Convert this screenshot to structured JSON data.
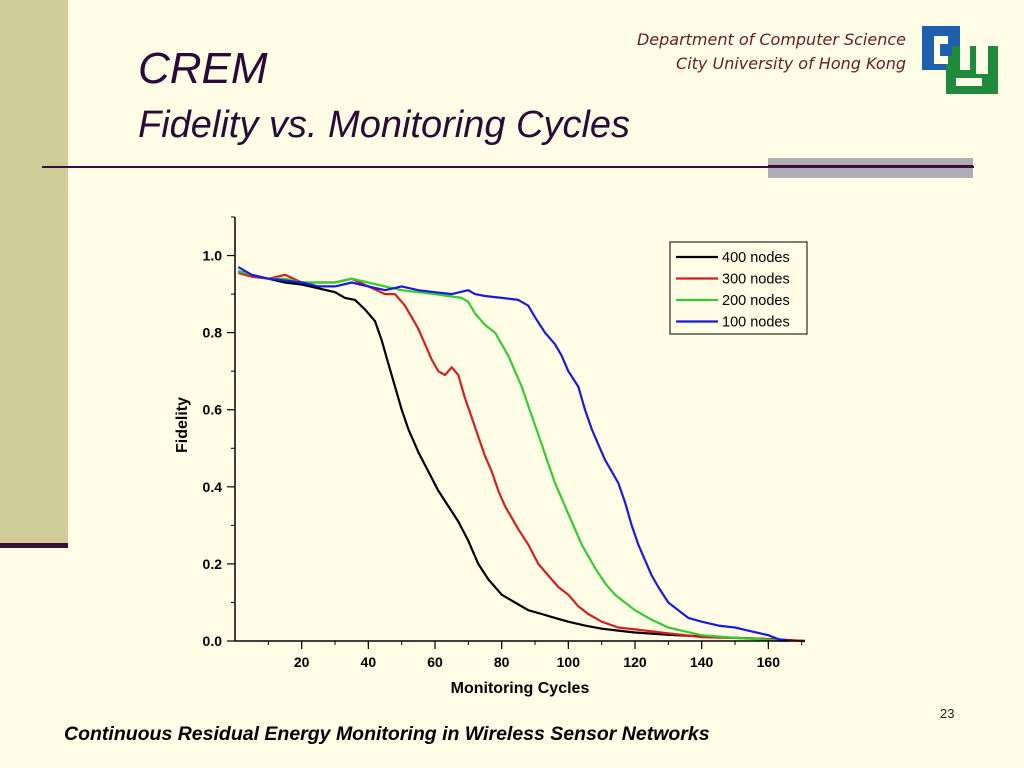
{
  "slide": {
    "title": "CREM",
    "subtitle": "Fidelity vs. Monitoring Cycles",
    "dept_line1": "Department of Computer Science",
    "dept_line2": "City University of Hong Kong",
    "page_number": "23",
    "footer": "Continuous Residual Energy Monitoring in Wireless Sensor Networks"
  },
  "colors": {
    "logo_blue": "#1f5fae",
    "logo_green": "#1f8a3c",
    "title": "#2a0a36",
    "dept": "#6b1a24"
  },
  "chart_data": {
    "type": "line",
    "title": "",
    "xlabel": "Monitoring Cycles",
    "ylabel": "Fidelity",
    "xlim": [
      0,
      171
    ],
    "ylim": [
      0,
      1.1
    ],
    "xticks": [
      20,
      40,
      60,
      80,
      100,
      120,
      140,
      160
    ],
    "xtick_labels": [
      "20",
      "40",
      "60",
      "80",
      "100",
      "120",
      "140",
      "160"
    ],
    "yticks": [
      0.0,
      0.2,
      0.4,
      0.6,
      0.8,
      1.0
    ],
    "ytick_labels": [
      "0.0",
      "0.2",
      "0.4",
      "0.6",
      "0.8",
      "1.0"
    ],
    "grid": false,
    "legend_position": "top-right",
    "series": [
      {
        "name": "400 nodes",
        "color": "#000000",
        "x": [
          1,
          5,
          10,
          15,
          20,
          25,
          30,
          33,
          36,
          39,
          42,
          44,
          46,
          48,
          50,
          52,
          55,
          58,
          61,
          64,
          67,
          70,
          73,
          76,
          80,
          84,
          88,
          92,
          96,
          100,
          105,
          110,
          115,
          120,
          130,
          140,
          150,
          160,
          165,
          171
        ],
        "y": [
          0.96,
          0.95,
          0.94,
          0.93,
          0.925,
          0.915,
          0.905,
          0.89,
          0.885,
          0.86,
          0.83,
          0.78,
          0.72,
          0.66,
          0.6,
          0.55,
          0.49,
          0.44,
          0.39,
          0.35,
          0.31,
          0.26,
          0.2,
          0.16,
          0.12,
          0.1,
          0.08,
          0.07,
          0.06,
          0.05,
          0.04,
          0.032,
          0.027,
          0.022,
          0.016,
          0.012,
          0.008,
          0.005,
          0.003,
          0.0
        ]
      },
      {
        "name": "300 nodes",
        "color": "#d42020",
        "x": [
          1,
          5,
          10,
          15,
          20,
          25,
          30,
          35,
          40,
          45,
          48,
          51,
          53,
          55,
          57,
          59,
          61,
          63,
          65,
          67,
          69,
          71,
          73,
          75,
          77,
          79,
          81,
          83,
          85,
          88,
          91,
          94,
          97,
          100,
          103,
          106,
          110,
          115,
          120,
          130,
          140,
          150,
          160,
          165,
          171
        ],
        "y": [
          0.955,
          0.945,
          0.94,
          0.95,
          0.93,
          0.93,
          0.93,
          0.94,
          0.92,
          0.9,
          0.9,
          0.87,
          0.84,
          0.81,
          0.77,
          0.73,
          0.7,
          0.69,
          0.71,
          0.69,
          0.63,
          0.58,
          0.53,
          0.48,
          0.44,
          0.39,
          0.35,
          0.32,
          0.29,
          0.25,
          0.2,
          0.17,
          0.14,
          0.12,
          0.09,
          0.07,
          0.05,
          0.035,
          0.03,
          0.02,
          0.01,
          0.008,
          0.005,
          0.002,
          0.0
        ]
      },
      {
        "name": "200 nodes",
        "color": "#33cc33",
        "x": [
          1,
          5,
          10,
          15,
          20,
          25,
          30,
          35,
          40,
          45,
          50,
          55,
          60,
          64,
          68,
          70,
          72,
          75,
          78,
          80,
          82,
          84,
          86,
          88,
          90,
          92,
          94,
          96,
          98,
          100,
          102,
          104,
          106,
          108,
          111,
          114,
          117,
          120,
          125,
          130,
          135,
          140,
          150,
          160,
          165
        ],
        "y": [
          0.96,
          0.95,
          0.94,
          0.94,
          0.93,
          0.93,
          0.93,
          0.94,
          0.93,
          0.92,
          0.91,
          0.905,
          0.9,
          0.895,
          0.89,
          0.88,
          0.85,
          0.82,
          0.8,
          0.77,
          0.74,
          0.7,
          0.66,
          0.61,
          0.56,
          0.51,
          0.46,
          0.41,
          0.37,
          0.33,
          0.29,
          0.25,
          0.22,
          0.19,
          0.15,
          0.12,
          0.1,
          0.08,
          0.055,
          0.035,
          0.025,
          0.015,
          0.008,
          0.003,
          0.0
        ]
      },
      {
        "name": "100 nodes",
        "color": "#1a1adc",
        "x": [
          1,
          5,
          10,
          15,
          20,
          25,
          30,
          35,
          40,
          45,
          50,
          55,
          60,
          65,
          70,
          72,
          75,
          80,
          85,
          88,
          90,
          93,
          96,
          98,
          100,
          103,
          105,
          107,
          109,
          111,
          113,
          115,
          117,
          119,
          121,
          123,
          125,
          127,
          130,
          133,
          136,
          140,
          145,
          150,
          155,
          160,
          163,
          166
        ],
        "y": [
          0.97,
          0.95,
          0.94,
          0.935,
          0.93,
          0.92,
          0.92,
          0.93,
          0.92,
          0.91,
          0.92,
          0.91,
          0.905,
          0.9,
          0.91,
          0.9,
          0.895,
          0.89,
          0.885,
          0.87,
          0.84,
          0.8,
          0.77,
          0.74,
          0.7,
          0.66,
          0.6,
          0.55,
          0.51,
          0.47,
          0.44,
          0.41,
          0.36,
          0.3,
          0.25,
          0.21,
          0.17,
          0.14,
          0.1,
          0.08,
          0.06,
          0.05,
          0.04,
          0.035,
          0.025,
          0.015,
          0.005,
          0.0
        ]
      }
    ]
  }
}
